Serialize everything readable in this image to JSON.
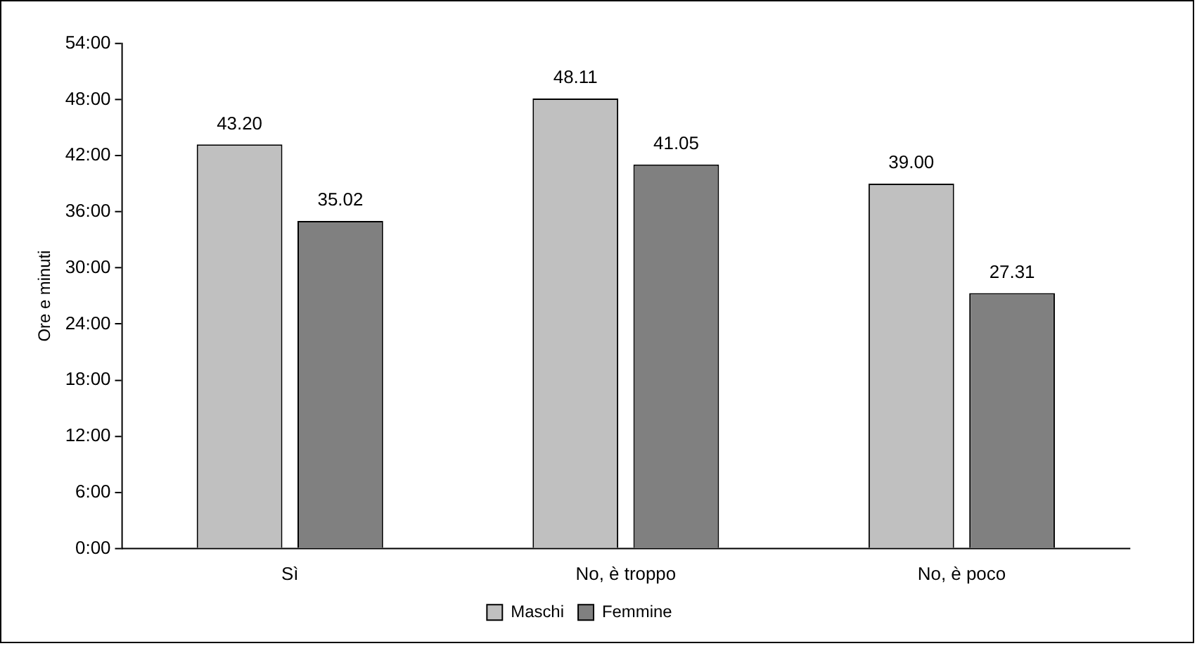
{
  "chart_data": {
    "type": "bar",
    "ylabel": "Ore e minuti",
    "categories": [
      "Sì",
      "No, è troppo",
      "No, è poco"
    ],
    "series": [
      {
        "name": "Maschi",
        "color": "#c0c0c0",
        "values": [
          43.2,
          48.11,
          39
        ],
        "value_labels": [
          "43.20",
          "48.11",
          "39.00"
        ]
      },
      {
        "name": "Femmine",
        "color": "#808080",
        "values": [
          35.02,
          41.05,
          27.31
        ],
        "value_labels": [
          "35.02",
          "41.05",
          "27.31"
        ]
      }
    ],
    "ylim": [
      0,
      54
    ],
    "yticks": [
      {
        "value": 0,
        "label": "0:00"
      },
      {
        "value": 6,
        "label": "6:00"
      },
      {
        "value": 12,
        "label": "12:00"
      },
      {
        "value": 18,
        "label": "18:00"
      },
      {
        "value": 24,
        "label": "24:00"
      },
      {
        "value": 30,
        "label": "30:00"
      },
      {
        "value": 36,
        "label": "36:00"
      },
      {
        "value": 42,
        "label": "42:00"
      },
      {
        "value": 48,
        "label": "48:00"
      },
      {
        "value": 54,
        "label": "54:00"
      }
    ],
    "grid": false,
    "legend": "bottom"
  }
}
